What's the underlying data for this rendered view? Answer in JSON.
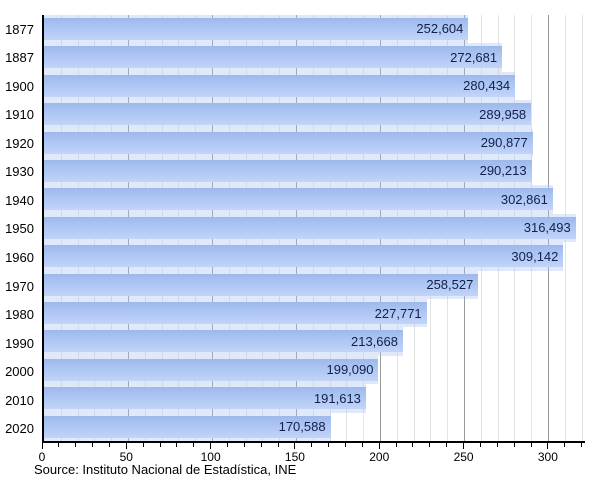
{
  "chart_data": {
    "type": "bar",
    "orientation": "horizontal",
    "title": "",
    "categories": [
      "1877",
      "1887",
      "1900",
      "1910",
      "1920",
      "1930",
      "1940",
      "1950",
      "1960",
      "1970",
      "1980",
      "1990",
      "2000",
      "2010",
      "2020"
    ],
    "values": [
      252604,
      272681,
      280434,
      289958,
      290877,
      290213,
      302861,
      316493,
      309142,
      258527,
      227771,
      213668,
      199090,
      191613,
      170588
    ],
    "value_labels": [
      "252,604",
      "272,681",
      "280,434",
      "289,958",
      "290,877",
      "290,213",
      "302,861",
      "316,493",
      "309,142",
      "258,527",
      "227,771",
      "213,668",
      "199,090",
      "191,613",
      "170,588"
    ],
    "x_axis": {
      "min": 0,
      "max": 322,
      "major_tick_step": 50,
      "minor_tick_step": 10,
      "value_divisor": 1000,
      "tick_labels": [
        "0",
        "50",
        "100",
        "150",
        "200",
        "250",
        "300"
      ]
    },
    "grid": true,
    "legend": false
  },
  "source_note": "Source: Instituto Nacional de Estadística, INE",
  "colors": {
    "bar_top": "#9eb8ec",
    "bar_mid": "#adc6f4",
    "bar_bottom": "#c2d4f8",
    "bar_halo": "rgba(171,197,243,0.38)",
    "value_text": "#12204a",
    "axis_line": "#000000",
    "minor_grid": "#e4e4e4",
    "major_grid": "#9b9b9b",
    "tick_text": "#000000"
  }
}
